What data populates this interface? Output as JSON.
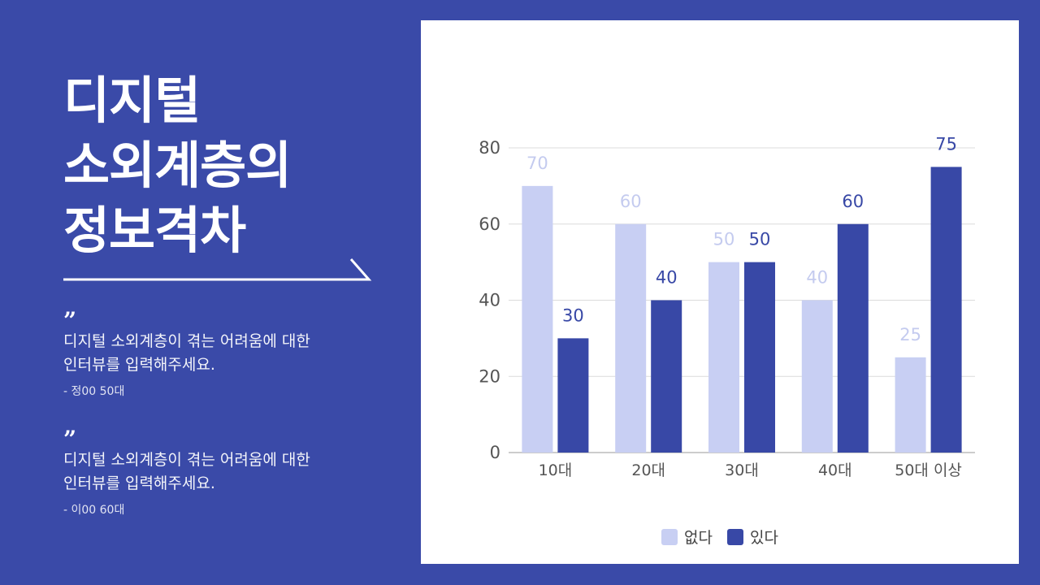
{
  "title_lines": [
    "디지털",
    "소외계층의",
    "정보격차"
  ],
  "quotes": [
    {
      "mark": "”",
      "text_lines": [
        "디지털 소외계층이 겪는 어려움에 대한",
        "인터뷰를 입력해주세요."
      ],
      "author": "- 정00 50대"
    },
    {
      "mark": "”",
      "text_lines": [
        "디지털 소외계층이 겪는 어려움에 대한",
        "인터뷰를 입력해주세요."
      ],
      "author": "- 이00 60대"
    }
  ],
  "colors": {
    "background": "#3a4aa8",
    "series_none": "#c8cff3",
    "series_yes": "#3848a6",
    "label_none": "#c4cbef",
    "label_yes": "#3848a6"
  },
  "chart_data": {
    "type": "bar",
    "categories": [
      "10대",
      "20대",
      "30대",
      "40대",
      "50대 이상"
    ],
    "series": [
      {
        "name": "없다",
        "values": [
          70,
          60,
          50,
          40,
          25
        ]
      },
      {
        "name": "있다",
        "values": [
          30,
          40,
          50,
          60,
          75
        ]
      }
    ],
    "ylim": [
      0,
      80
    ],
    "yticks": [
      "0",
      "20",
      "40",
      "60",
      "80"
    ],
    "grid": true,
    "legend_position": "bottom"
  }
}
